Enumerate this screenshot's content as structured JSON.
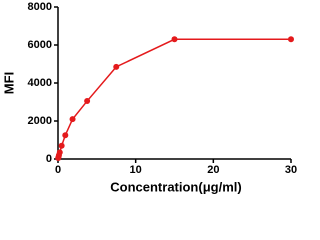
{
  "chart_data": {
    "type": "line",
    "x_label": "Concentration(μg/ml)",
    "y_label": "MFI",
    "x": [
      0.03,
      0.06,
      0.12,
      0.23,
      0.47,
      0.94,
      1.875,
      3.75,
      7.5,
      15,
      30
    ],
    "series": [
      {
        "color": "#e41a1c",
        "values": [
          50,
          100,
          200,
          350,
          700,
          1250,
          2100,
          3050,
          4850,
          6300,
          6300
        ]
      }
    ],
    "xlim": [
      0,
      30
    ],
    "xticks": [
      0,
      10,
      20,
      30
    ],
    "ylim": [
      0,
      8000
    ],
    "yticks": [
      0,
      2000,
      4000,
      6000,
      8000
    ],
    "grid": false
  }
}
